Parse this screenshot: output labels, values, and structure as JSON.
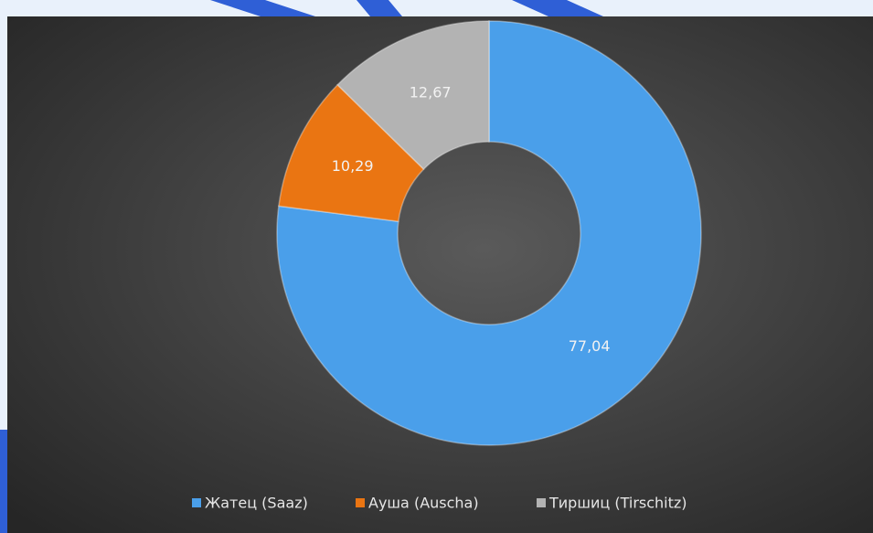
{
  "chart_data": {
    "type": "pie",
    "donut": true,
    "categories": [
      "Жатец (Saaz)",
      "Ауша (Auscha)",
      "Тиршиц (Tirschitz)"
    ],
    "values": [
      77.04,
      10.29,
      12.67
    ],
    "value_labels": [
      "77,04",
      "10,29",
      "12,67"
    ],
    "colors": [
      "#4a9fea",
      "#ea7512",
      "#b3b3b3"
    ],
    "legend": "bottom"
  }
}
